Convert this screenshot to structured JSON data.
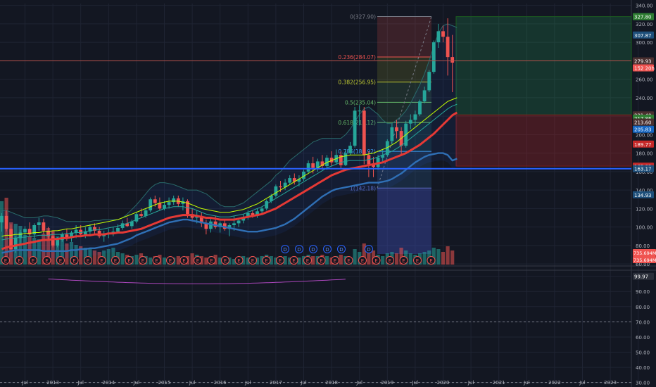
{
  "chart_data": {
    "type": "line",
    "title": "",
    "price_scale": {
      "ticks": [
        340,
        320,
        300,
        280,
        260,
        240,
        220,
        200,
        180,
        160,
        140,
        120,
        100,
        80,
        60
      ],
      "tick_labels": [
        "340.00",
        "320.00",
        "300.00",
        "280.00",
        "260.00",
        "240.00",
        "220.00",
        "200.00",
        "180.00",
        "160.00",
        "140.00",
        "120.00",
        "100.00",
        "80.00",
        "60.00"
      ],
      "ylim": [
        54,
        342
      ],
      "badges": [
        {
          "label": "327.80",
          "value": 327.8,
          "color": "#2e7d32"
        },
        {
          "label": "307.87",
          "value": 307.87,
          "color": "#1e4f7a"
        },
        {
          "label": "279.93",
          "value": 279.93,
          "color": "#4a2f2f"
        },
        {
          "label": "152 20h",
          "value": 272.3,
          "color": "#ef5350"
        },
        {
          "label": "221.40",
          "value": 221.4,
          "color": "#4a2f2f"
        },
        {
          "label": "217.86",
          "value": 217.86,
          "color": "#2e7d32"
        },
        {
          "label": "213.60",
          "value": 213.6,
          "color": "#4a2f2f"
        },
        {
          "label": "205.83",
          "value": 205.83,
          "color": "#1565c0"
        },
        {
          "label": "189.77",
          "value": 189.77,
          "color": "#c62828"
        },
        {
          "label": "165.92",
          "value": 165.92,
          "color": "#c62828"
        },
        {
          "label": "163.17",
          "value": 163.17,
          "color": "#1e4f7a"
        },
        {
          "label": "134.93",
          "value": 134.93,
          "color": "#1e4f7a"
        }
      ]
    },
    "oscillator_scale": {
      "ticks": [
        100,
        90,
        80,
        70,
        60,
        50,
        40,
        30
      ],
      "tick_labels": [
        "",
        "90.00",
        "80.00",
        "70.00",
        "60.00",
        "50.00",
        "40.00",
        "30.00"
      ],
      "ylim": [
        28,
        104
      ],
      "levels": [
        70,
        30
      ],
      "badge": {
        "label": "99.97",
        "value": 99.97
      }
    },
    "volume_badges": [
      "735.694M",
      "735.694M"
    ],
    "x_axis": {
      "labels": [
        "Jul",
        "2013",
        "Jul",
        "2014",
        "Jul",
        "2015",
        "Jul",
        "2016",
        "Jul",
        "2017",
        "Jul",
        "2018",
        "Jul",
        "2019",
        "Jul",
        "2020",
        "Jul",
        "2021",
        "Jul",
        "2022",
        "Jul",
        "2023",
        "Jul"
      ],
      "first_month_index": 5
    },
    "candles": [
      [
        105,
        115,
        95,
        112
      ],
      [
        112,
        118,
        95,
        98
      ],
      [
        98,
        103,
        74,
        76
      ],
      [
        76,
        90,
        72,
        88
      ],
      [
        88,
        97,
        82,
        94
      ],
      [
        94,
        101,
        88,
        98
      ],
      [
        98,
        105,
        90,
        92
      ],
      [
        92,
        104,
        88,
        102
      ],
      [
        102,
        110,
        96,
        105
      ],
      [
        105,
        109,
        92,
        96
      ],
      [
        96,
        100,
        86,
        90
      ],
      [
        90,
        96,
        78,
        80
      ],
      [
        80,
        89,
        78,
        86
      ],
      [
        86,
        94,
        84,
        92
      ],
      [
        92,
        98,
        85,
        88
      ],
      [
        88,
        96,
        84,
        94
      ],
      [
        94,
        102,
        88,
        97
      ],
      [
        97,
        102,
        90,
        92
      ],
      [
        92,
        100,
        88,
        95
      ],
      [
        95,
        103,
        90,
        100
      ],
      [
        100,
        104,
        93,
        96
      ],
      [
        96,
        100,
        88,
        90
      ],
      [
        90,
        96,
        84,
        92
      ],
      [
        92,
        98,
        88,
        94
      ],
      [
        94,
        100,
        90,
        95
      ],
      [
        95,
        103,
        93,
        99
      ],
      [
        99,
        107,
        97,
        104
      ],
      [
        104,
        110,
        100,
        101
      ],
      [
        101,
        108,
        98,
        106
      ],
      [
        106,
        116,
        104,
        114
      ],
      [
        114,
        120,
        110,
        112
      ],
      [
        112,
        120,
        110,
        118
      ],
      [
        118,
        132,
        116,
        130
      ],
      [
        130,
        134,
        122,
        126
      ],
      [
        126,
        132,
        118,
        120
      ],
      [
        120,
        128,
        118,
        124
      ],
      [
        124,
        132,
        120,
        127
      ],
      [
        127,
        134,
        124,
        131
      ],
      [
        131,
        134,
        122,
        125
      ],
      [
        125,
        132,
        118,
        128
      ],
      [
        128,
        130,
        110,
        114
      ],
      [
        114,
        120,
        106,
        110
      ],
      [
        110,
        118,
        104,
        112
      ],
      [
        112,
        116,
        100,
        104
      ],
      [
        104,
        108,
        92,
        98
      ],
      [
        98,
        110,
        94,
        106
      ],
      [
        106,
        112,
        98,
        100
      ],
      [
        100,
        106,
        94,
        104
      ],
      [
        104,
        108,
        96,
        98
      ],
      [
        98,
        104,
        90,
        102
      ],
      [
        102,
        112,
        96,
        104
      ],
      [
        104,
        108,
        100,
        107
      ],
      [
        107,
        114,
        104,
        111
      ],
      [
        111,
        118,
        108,
        115
      ],
      [
        115,
        118,
        110,
        112
      ],
      [
        112,
        120,
        110,
        117
      ],
      [
        117,
        122,
        114,
        120
      ],
      [
        120,
        130,
        118,
        128
      ],
      [
        128,
        136,
        126,
        134
      ],
      [
        134,
        146,
        132,
        144
      ],
      [
        144,
        150,
        138,
        143
      ],
      [
        143,
        152,
        140,
        148
      ],
      [
        148,
        156,
        146,
        153
      ],
      [
        153,
        158,
        146,
        149
      ],
      [
        149,
        156,
        144,
        152
      ],
      [
        152,
        162,
        150,
        160
      ],
      [
        160,
        172,
        158,
        169
      ],
      [
        169,
        176,
        158,
        164
      ],
      [
        164,
        174,
        160,
        171
      ],
      [
        171,
        178,
        162,
        166
      ],
      [
        166,
        178,
        162,
        175
      ],
      [
        175,
        182,
        166,
        170
      ],
      [
        170,
        184,
        168,
        178
      ],
      [
        178,
        182,
        164,
        167
      ],
      [
        167,
        184,
        166,
        180
      ],
      [
        180,
        192,
        178,
        188
      ],
      [
        188,
        230,
        186,
        226
      ],
      [
        226,
        232,
        210,
        226
      ],
      [
        226,
        230,
        168,
        178
      ],
      [
        178,
        182,
        154,
        168
      ],
      [
        168,
        176,
        154,
        165
      ],
      [
        165,
        178,
        162,
        175
      ],
      [
        175,
        184,
        170,
        178
      ],
      [
        178,
        195,
        176,
        193
      ],
      [
        193,
        212,
        190,
        208
      ],
      [
        208,
        216,
        196,
        204
      ],
      [
        204,
        208,
        178,
        188
      ],
      [
        188,
        215,
        186,
        212
      ],
      [
        212,
        222,
        206,
        216
      ],
      [
        216,
        226,
        210,
        222
      ],
      [
        222,
        238,
        220,
        236
      ],
      [
        236,
        252,
        234,
        248
      ],
      [
        248,
        270,
        246,
        268
      ],
      [
        268,
        302,
        266,
        300
      ],
      [
        300,
        320,
        294,
        312
      ],
      [
        312,
        318,
        300,
        306
      ],
      [
        306,
        326,
        264,
        284
      ],
      [
        284,
        308,
        246,
        278
      ]
    ],
    "series": [
      {
        "name": "",
        "color": "#e53935",
        "values": [
          76,
          78,
          79,
          80,
          81,
          82,
          83,
          84,
          85,
          86,
          86,
          87,
          87,
          88,
          88,
          89,
          90,
          90,
          91,
          91,
          92,
          92,
          92,
          93,
          93,
          94,
          94,
          95,
          96,
          97,
          98,
          100,
          102,
          104,
          106,
          108,
          110,
          111,
          112,
          113,
          113,
          113,
          112,
          111,
          110,
          110,
          109,
          108,
          108,
          108,
          108,
          109,
          110,
          111,
          112,
          113,
          114,
          116,
          118,
          120,
          123,
          126,
          129,
          132,
          135,
          138,
          141,
          144,
          147,
          150,
          153,
          156,
          158,
          160,
          162,
          163,
          164,
          165,
          166,
          167,
          168,
          169,
          170,
          172,
          174,
          176,
          178,
          180,
          183,
          186,
          189,
          193,
          197,
          201,
          206,
          211,
          216,
          221,
          224
        ]
      },
      {
        "name": "",
        "color": "#2f6fb5",
        "values": [
          72,
          73,
          74,
          75,
          75,
          75,
          75,
          75,
          75,
          74,
          74,
          74,
          74,
          74,
          74,
          75,
          75,
          76,
          76,
          77,
          77,
          78,
          79,
          80,
          81,
          82,
          84,
          86,
          88,
          91,
          93,
          95,
          97,
          99,
          101,
          103,
          105,
          106,
          107,
          108,
          108,
          107,
          106,
          105,
          104,
          103,
          102,
          101,
          100,
          99,
          98,
          97,
          96,
          95,
          95,
          95,
          96,
          97,
          98,
          99,
          101,
          103,
          106,
          109,
          113,
          117,
          121,
          125,
          129,
          133,
          136,
          139,
          141,
          142,
          143,
          144,
          145,
          146,
          147,
          148,
          148,
          148,
          149,
          150,
          152,
          155,
          158,
          162,
          166,
          170,
          173,
          176,
          178,
          179,
          180,
          180,
          178,
          172,
          174
        ]
      },
      {
        "name": "",
        "color": "#26a69a",
        "values": [
          86,
          87,
          88,
          88,
          89,
          89,
          90,
          90,
          91,
          91,
          91,
          92,
          92,
          92,
          93,
          93,
          94,
          94,
          95,
          96,
          97,
          97,
          98,
          99,
          100,
          101,
          102,
          104,
          106,
          108,
          110,
          112,
          114,
          116,
          118,
          120,
          121,
          122,
          122,
          122,
          121,
          120,
          118,
          116,
          114,
          113,
          112,
          111,
          111,
          111,
          112,
          113,
          114,
          116,
          118,
          120,
          122,
          125,
          128,
          131,
          134,
          137,
          140,
          143,
          146,
          149,
          152,
          155,
          158,
          161,
          164,
          166,
          168,
          170,
          171,
          172,
          172,
          172,
          172,
          173,
          174,
          176,
          178,
          180,
          182,
          185,
          188,
          192,
          196,
          200,
          204,
          208,
          212,
          216,
          220,
          224,
          228,
          231,
          233
        ]
      },
      {
        "name": "",
        "color": "#c6ff00",
        "values": [
          90,
          91,
          91,
          92,
          92,
          93,
          93,
          94,
          94,
          95,
          95,
          96,
          96,
          97,
          98,
          98,
          99,
          100,
          101,
          102,
          103,
          104,
          105,
          106,
          107,
          108,
          110,
          112,
          114,
          116,
          118,
          120,
          122,
          124,
          126,
          127,
          128,
          128,
          128,
          127,
          126,
          124,
          122,
          120,
          119,
          118,
          117,
          116,
          116,
          116,
          117,
          118,
          119,
          121,
          123,
          125,
          128,
          131,
          134,
          137,
          140,
          143,
          146,
          149,
          152,
          155,
          158,
          161,
          164,
          167,
          170,
          172,
          174,
          176,
          177,
          178,
          178,
          178,
          178,
          179,
          180,
          182,
          184,
          186,
          189,
          192,
          196,
          200,
          204,
          208,
          212,
          216,
          220,
          224,
          228,
          232,
          236,
          238,
          240
        ]
      }
    ],
    "bollinger_upper": [
      118,
      118,
      116,
      114,
      112,
      110,
      110,
      110,
      111,
      112,
      112,
      111,
      110,
      108,
      106,
      106,
      106,
      106,
      106,
      106,
      107,
      107,
      108,
      108,
      108,
      108,
      110,
      114,
      119,
      124,
      130,
      136,
      142,
      146,
      148,
      148,
      147,
      146,
      144,
      142,
      140,
      140,
      140,
      138,
      136,
      132,
      128,
      124,
      122,
      122,
      122,
      124,
      126,
      130,
      134,
      138,
      142,
      146,
      150,
      156,
      160,
      166,
      172,
      176,
      180,
      184,
      188,
      192,
      194,
      196,
      196,
      196,
      196,
      196,
      200,
      206,
      214,
      222,
      228,
      230,
      226,
      222,
      216,
      212,
      212,
      216,
      220,
      226,
      234,
      244,
      254,
      266,
      280,
      296,
      310,
      318,
      320,
      318,
      316
    ]
  },
  "fibonacci": {
    "levels": [
      {
        "label": "0(327.90)",
        "value": 327.9,
        "color": "#787b86"
      },
      {
        "label": "0.236(284.07)",
        "value": 284.07,
        "color": "#ef5350"
      },
      {
        "label": "0.382(256.95)",
        "value": 256.95,
        "color": "#c0ca33"
      },
      {
        "label": "0.5(235.04)",
        "value": 235.04,
        "color": "#66bb6a"
      },
      {
        "label": "0.618(213.12)",
        "value": 213.12,
        "color": "#66bb6a"
      },
      {
        "label": "0.786(181.92)",
        "value": 181.92,
        "color": "#42a5f5"
      },
      {
        "label": "1(142.18)",
        "value": 142.18,
        "color": "#5c6bc0"
      }
    ]
  },
  "horizontal_lines": [
    {
      "value": 163.17,
      "color": "#2962ff"
    },
    {
      "value": 279.93,
      "color": "#b4504a"
    }
  ],
  "position_box": {
    "target": 327.8,
    "entry": 221.4,
    "stop": 165.92
  },
  "event_markers": {
    "earnings_label": "E",
    "dividend_label": "D",
    "earnings_count": 32,
    "dividend_count": 6
  },
  "colors": {
    "background": "#131722",
    "grid": "#1f2433",
    "up": "#26a69a",
    "down": "#ef5350",
    "axis_text": "#b2b5be"
  }
}
